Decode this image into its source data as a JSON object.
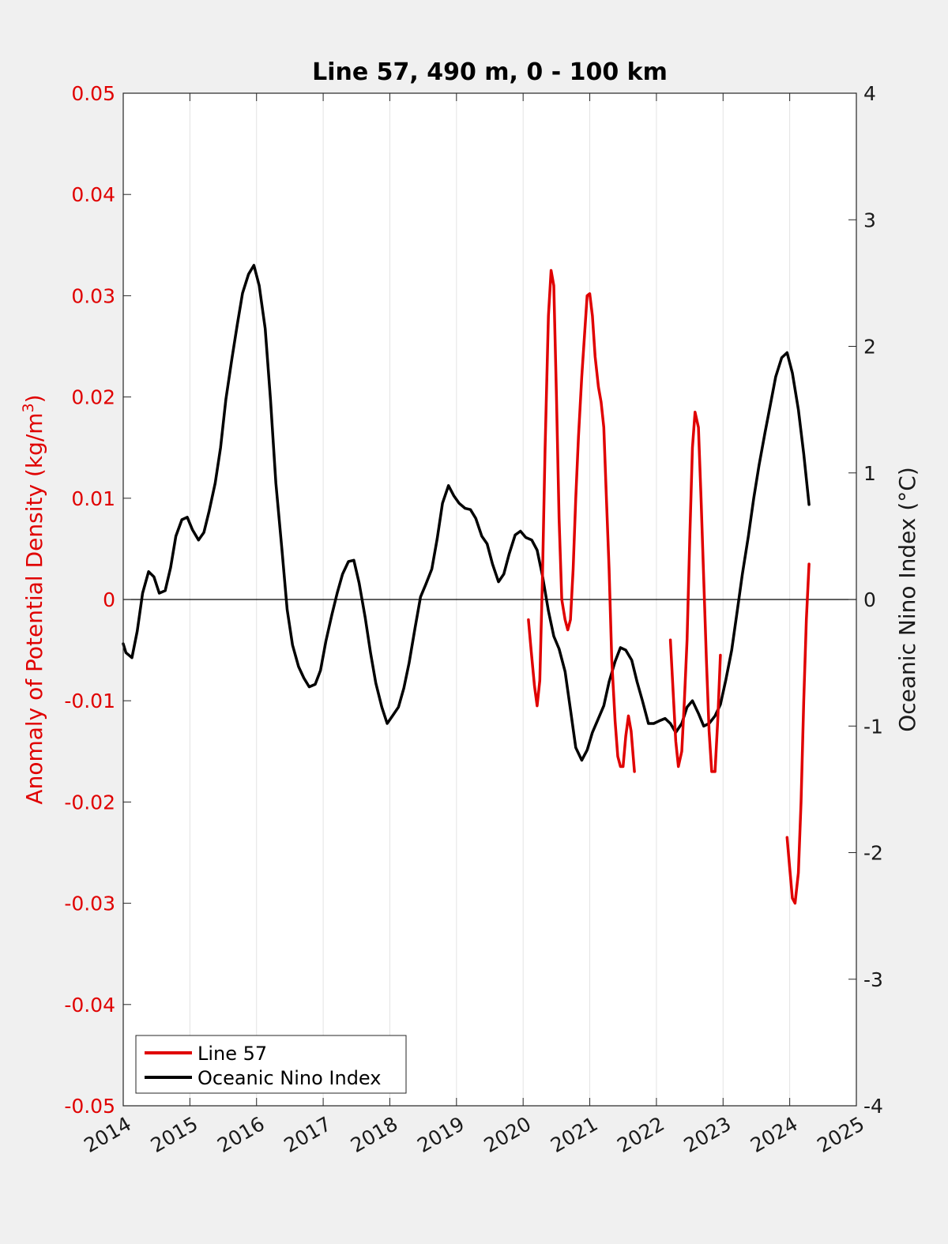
{
  "chart_data": {
    "type": "line",
    "title": "Line 57, 490 m, 0 - 100 km",
    "xlim": [
      2014,
      2025
    ],
    "x_ticks": [
      "2014",
      "2015",
      "2016",
      "2017",
      "2018",
      "2019",
      "2020",
      "2021",
      "2022",
      "2023",
      "2024",
      "2025"
    ],
    "y_left": {
      "label_main": "Anomaly of Potential Density (kg/m",
      "label_sup": "3",
      "label_end": ")",
      "ylim": [
        -0.05,
        0.05
      ],
      "ticks": [
        "0.05",
        "0.04",
        "0.03",
        "0.02",
        "0.01",
        "0",
        "-0.01",
        "-0.02",
        "-0.03",
        "-0.04",
        "-0.05"
      ],
      "color": "#e00000"
    },
    "y_right": {
      "label": "Oceanic Nino Index (°C)",
      "ylim": [
        -4,
        4
      ],
      "ticks": [
        "4",
        "3",
        "2",
        "1",
        "0",
        "-1",
        "-2",
        "-3",
        "-4"
      ],
      "color": "#1a1a1a"
    },
    "grid": "vertical",
    "zero_line": true,
    "legend": {
      "placement": "bottom-left",
      "entries": [
        "Line 57",
        "Oceanic Nino Index"
      ]
    },
    "series": [
      {
        "name": "Line 57",
        "axis": "left",
        "color": "#e00000",
        "segments": [
          [
            [
              2020.08,
              -0.002
            ],
            [
              2020.12,
              -0.005
            ],
            [
              2020.17,
              -0.0085
            ],
            [
              2020.21,
              -0.0105
            ],
            [
              2020.25,
              -0.008
            ],
            [
              2020.29,
              0.002
            ],
            [
              2020.33,
              0.015
            ],
            [
              2020.38,
              0.028
            ],
            [
              2020.42,
              0.0325
            ],
            [
              2020.46,
              0.031
            ],
            [
              2020.5,
              0.02
            ],
            [
              2020.54,
              0.008
            ],
            [
              2020.58,
              0.0
            ],
            [
              2020.63,
              -0.002
            ],
            [
              2020.67,
              -0.003
            ],
            [
              2020.71,
              -0.002
            ],
            [
              2020.75,
              0.003
            ],
            [
              2020.79,
              0.01
            ],
            [
              2020.83,
              0.016
            ],
            [
              2020.88,
              0.022
            ],
            [
              2020.92,
              0.026
            ],
            [
              2020.96,
              0.03
            ],
            [
              2021.0,
              0.0302
            ],
            [
              2021.04,
              0.028
            ],
            [
              2021.08,
              0.024
            ],
            [
              2021.13,
              0.021
            ],
            [
              2021.17,
              0.0195
            ],
            [
              2021.21,
              0.017
            ],
            [
              2021.25,
              0.01
            ],
            [
              2021.29,
              0.003
            ],
            [
              2021.33,
              -0.006
            ],
            [
              2021.38,
              -0.012
            ],
            [
              2021.42,
              -0.0155
            ],
            [
              2021.46,
              -0.0165
            ],
            [
              2021.5,
              -0.0165
            ],
            [
              2021.54,
              -0.0135
            ],
            [
              2021.58,
              -0.0115
            ],
            [
              2021.62,
              -0.013
            ],
            [
              2021.67,
              -0.017
            ]
          ],
          [
            [
              2022.21,
              -0.004
            ],
            [
              2022.25,
              -0.009
            ],
            [
              2022.29,
              -0.014
            ],
            [
              2022.33,
              -0.0165
            ],
            [
              2022.38,
              -0.015
            ],
            [
              2022.42,
              -0.01
            ],
            [
              2022.46,
              -0.004
            ],
            [
              2022.5,
              0.006
            ],
            [
              2022.54,
              0.015
            ],
            [
              2022.58,
              0.0185
            ],
            [
              2022.63,
              0.017
            ],
            [
              2022.67,
              0.01
            ],
            [
              2022.71,
              0.002
            ],
            [
              2022.75,
              -0.006
            ],
            [
              2022.79,
              -0.013
            ],
            [
              2022.83,
              -0.017
            ],
            [
              2022.88,
              -0.017
            ],
            [
              2022.92,
              -0.012
            ],
            [
              2022.96,
              -0.0055
            ]
          ],
          [
            [
              2023.96,
              -0.0235
            ],
            [
              2024.0,
              -0.0265
            ],
            [
              2024.04,
              -0.0295
            ],
            [
              2024.08,
              -0.03
            ],
            [
              2024.13,
              -0.027
            ],
            [
              2024.17,
              -0.02
            ],
            [
              2024.21,
              -0.01
            ],
            [
              2024.25,
              -0.002
            ],
            [
              2024.29,
              0.0035
            ]
          ]
        ]
      },
      {
        "name": "Oceanic Nino Index",
        "axis": "right",
        "color": "#000000",
        "segments": [
          [
            [
              2014.0,
              -0.35
            ],
            [
              2014.04,
              -0.42
            ],
            [
              2014.13,
              -0.46
            ],
            [
              2014.21,
              -0.25
            ],
            [
              2014.29,
              0.05
            ],
            [
              2014.38,
              0.22
            ],
            [
              2014.46,
              0.18
            ],
            [
              2014.54,
              0.05
            ],
            [
              2014.63,
              0.07
            ],
            [
              2014.71,
              0.25
            ],
            [
              2014.79,
              0.5
            ],
            [
              2014.88,
              0.63
            ],
            [
              2014.96,
              0.65
            ],
            [
              2015.04,
              0.55
            ],
            [
              2015.13,
              0.47
            ],
            [
              2015.21,
              0.53
            ],
            [
              2015.29,
              0.7
            ],
            [
              2015.38,
              0.92
            ],
            [
              2015.46,
              1.2
            ],
            [
              2015.54,
              1.58
            ],
            [
              2015.63,
              1.9
            ],
            [
              2015.71,
              2.17
            ],
            [
              2015.79,
              2.42
            ],
            [
              2015.88,
              2.57
            ],
            [
              2015.96,
              2.64
            ],
            [
              2016.04,
              2.48
            ],
            [
              2016.13,
              2.14
            ],
            [
              2016.21,
              1.58
            ],
            [
              2016.29,
              0.92
            ],
            [
              2016.38,
              0.4
            ],
            [
              2016.46,
              -0.08
            ],
            [
              2016.54,
              -0.36
            ],
            [
              2016.63,
              -0.53
            ],
            [
              2016.71,
              -0.62
            ],
            [
              2016.79,
              -0.69
            ],
            [
              2016.88,
              -0.67
            ],
            [
              2016.96,
              -0.56
            ],
            [
              2017.04,
              -0.33
            ],
            [
              2017.13,
              -0.12
            ],
            [
              2017.21,
              0.05
            ],
            [
              2017.29,
              0.2
            ],
            [
              2017.38,
              0.3
            ],
            [
              2017.46,
              0.31
            ],
            [
              2017.54,
              0.13
            ],
            [
              2017.63,
              -0.14
            ],
            [
              2017.71,
              -0.42
            ],
            [
              2017.79,
              -0.66
            ],
            [
              2017.88,
              -0.85
            ],
            [
              2017.96,
              -0.98
            ],
            [
              2018.04,
              -0.92
            ],
            [
              2018.13,
              -0.85
            ],
            [
              2018.21,
              -0.7
            ],
            [
              2018.29,
              -0.5
            ],
            [
              2018.38,
              -0.22
            ],
            [
              2018.46,
              0.02
            ],
            [
              2018.54,
              0.12
            ],
            [
              2018.63,
              0.24
            ],
            [
              2018.71,
              0.48
            ],
            [
              2018.79,
              0.76
            ],
            [
              2018.88,
              0.9
            ],
            [
              2018.96,
              0.82
            ],
            [
              2019.04,
              0.76
            ],
            [
              2019.13,
              0.72
            ],
            [
              2019.21,
              0.71
            ],
            [
              2019.29,
              0.64
            ],
            [
              2019.38,
              0.5
            ],
            [
              2019.46,
              0.44
            ],
            [
              2019.54,
              0.28
            ],
            [
              2019.63,
              0.14
            ],
            [
              2019.71,
              0.2
            ],
            [
              2019.79,
              0.36
            ],
            [
              2019.88,
              0.51
            ],
            [
              2019.96,
              0.54
            ],
            [
              2020.04,
              0.49
            ],
            [
              2020.13,
              0.47
            ],
            [
              2020.21,
              0.39
            ],
            [
              2020.29,
              0.19
            ],
            [
              2020.38,
              -0.09
            ],
            [
              2020.46,
              -0.29
            ],
            [
              2020.54,
              -0.39
            ],
            [
              2020.63,
              -0.57
            ],
            [
              2020.71,
              -0.87
            ],
            [
              2020.79,
              -1.17
            ],
            [
              2020.88,
              -1.27
            ],
            [
              2020.96,
              -1.19
            ],
            [
              2021.04,
              -1.05
            ],
            [
              2021.13,
              -0.94
            ],
            [
              2021.21,
              -0.84
            ],
            [
              2021.29,
              -0.65
            ],
            [
              2021.38,
              -0.49
            ],
            [
              2021.46,
              -0.38
            ],
            [
              2021.54,
              -0.4
            ],
            [
              2021.63,
              -0.48
            ],
            [
              2021.71,
              -0.65
            ],
            [
              2021.79,
              -0.8
            ],
            [
              2021.88,
              -0.98
            ],
            [
              2021.96,
              -0.98
            ],
            [
              2022.04,
              -0.96
            ],
            [
              2022.13,
              -0.94
            ],
            [
              2022.21,
              -0.98
            ],
            [
              2022.29,
              -1.05
            ],
            [
              2022.38,
              -0.98
            ],
            [
              2022.46,
              -0.85
            ],
            [
              2022.54,
              -0.8
            ],
            [
              2022.63,
              -0.9
            ],
            [
              2022.71,
              -1.0
            ],
            [
              2022.79,
              -0.98
            ],
            [
              2022.88,
              -0.92
            ],
            [
              2022.96,
              -0.83
            ],
            [
              2023.04,
              -0.64
            ],
            [
              2023.13,
              -0.4
            ],
            [
              2023.21,
              -0.1
            ],
            [
              2023.29,
              0.2
            ],
            [
              2023.38,
              0.5
            ],
            [
              2023.46,
              0.8
            ],
            [
              2023.54,
              1.06
            ],
            [
              2023.63,
              1.32
            ],
            [
              2023.71,
              1.54
            ],
            [
              2023.79,
              1.76
            ],
            [
              2023.88,
              1.91
            ],
            [
              2023.96,
              1.95
            ],
            [
              2024.04,
              1.79
            ],
            [
              2024.13,
              1.5
            ],
            [
              2024.21,
              1.15
            ],
            [
              2024.29,
              0.75
            ]
          ]
        ]
      }
    ]
  }
}
